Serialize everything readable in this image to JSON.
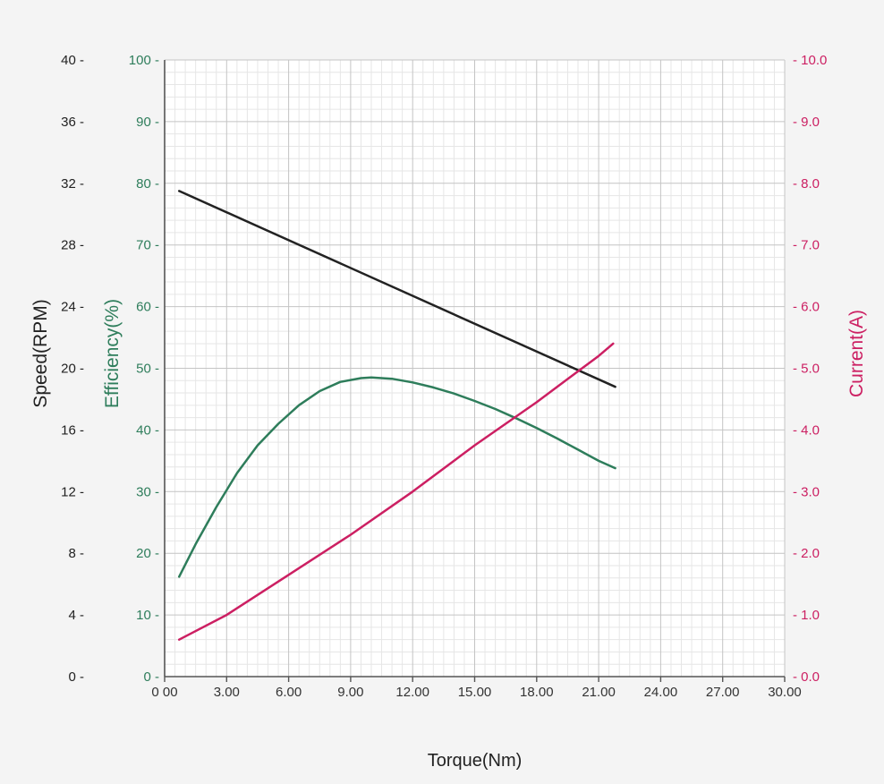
{
  "chart_data": {
    "type": "line",
    "xlabel": "Torque(Nm)",
    "xlim": [
      0,
      30
    ],
    "xticks": [
      "0 00",
      "3.00",
      "6.00",
      "9.00",
      "12.00",
      "15.00",
      "18.00",
      "21.00",
      "24.00",
      "27.00",
      "30.00"
    ],
    "axes": {
      "speed": {
        "label": "Speed(RPM)",
        "range": [
          0,
          40
        ],
        "ticks": [
          "0",
          "4",
          "8",
          "12",
          "16",
          "20",
          "24",
          "28",
          "32",
          "36",
          "40"
        ],
        "color": "#222222"
      },
      "efficiency": {
        "label": "Efficiency(%)",
        "range": [
          0,
          100
        ],
        "ticks": [
          "0",
          "10",
          "20",
          "30",
          "40",
          "50",
          "60",
          "70",
          "80",
          "90",
          "100"
        ],
        "color": "#2e7d5b"
      },
      "current": {
        "label": "Current(A)",
        "range": [
          0,
          10
        ],
        "ticks": [
          "0.0",
          "1.0",
          "2.0",
          "3.0",
          "4.0",
          "5.0",
          "6.0",
          "7.0",
          "8.0",
          "9.0",
          "10.0"
        ],
        "color": "#cc1f62"
      }
    },
    "grid": true,
    "series": [
      {
        "axis": "speed",
        "color": "#222222",
        "x": [
          0.7,
          21.8
        ],
        "y": [
          31.5,
          18.8
        ]
      },
      {
        "axis": "efficiency",
        "color": "#2e7d5b",
        "x": [
          0.7,
          1.5,
          2.5,
          3.5,
          4.5,
          5.5,
          6.5,
          7.5,
          8.5,
          9.5,
          10.0,
          11.0,
          12.0,
          13.0,
          14.0,
          15.0,
          16.0,
          17.0,
          18.0,
          19.0,
          20.0,
          21.0,
          21.8
        ],
        "y": [
          16.2,
          21.5,
          27.5,
          33.0,
          37.5,
          41.0,
          44.0,
          46.3,
          47.8,
          48.4,
          48.5,
          48.3,
          47.7,
          46.9,
          45.9,
          44.7,
          43.4,
          41.9,
          40.3,
          38.6,
          36.8,
          35.0,
          33.8
        ]
      },
      {
        "axis": "current",
        "color": "#cc1f62",
        "x": [
          0.7,
          3,
          6,
          9,
          12,
          15,
          18,
          20,
          21,
          21.7
        ],
        "y": [
          0.6,
          1.0,
          1.65,
          2.3,
          3.0,
          3.75,
          4.45,
          4.95,
          5.2,
          5.4
        ]
      }
    ]
  }
}
